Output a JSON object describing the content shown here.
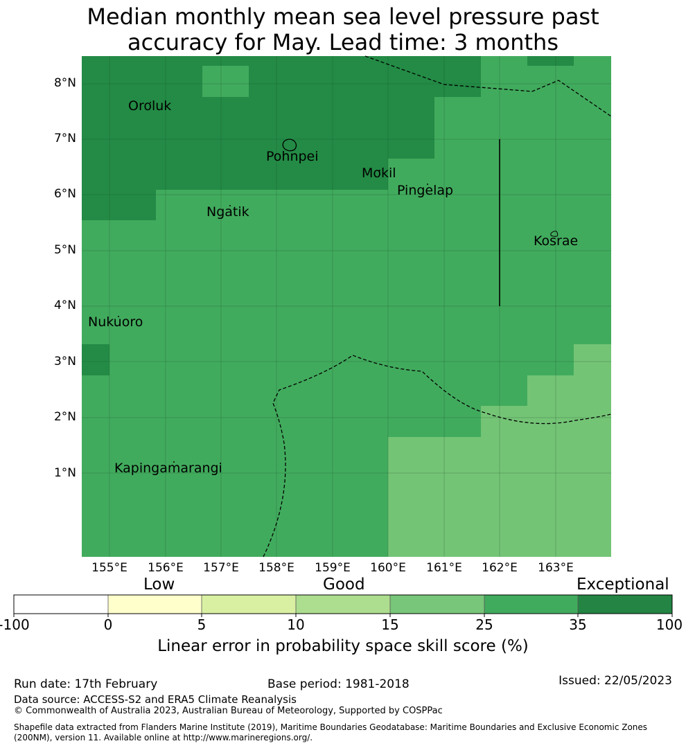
{
  "title_line1": "Median monthly mean sea level pressure past",
  "title_line2": "accuracy for May. Lead time: 3 months",
  "map": {
    "lat_labels": [
      "8°N",
      "7°N",
      "6°N",
      "5°N",
      "4°N",
      "3°N",
      "2°N",
      "1°N"
    ],
    "lon_labels": [
      "155°E",
      "156°E",
      "157°E",
      "158°E",
      "159°E",
      "160°E",
      "161°E",
      "162°E",
      "163°E"
    ],
    "places": {
      "oroluk": "Oroluk",
      "pohnpei": "Pohnpei",
      "mokil": "Mokil",
      "pingelap": "Pingelap",
      "ngatik": "Ngatik",
      "kosrae": "Kosrae",
      "nukuoro": "Nukuoro",
      "kapingamarangi": "Kapingamarangi"
    },
    "colors": {
      "exceptional_35_100": "#238b45",
      "good_25_35": "#41ab5d",
      "good_15_25": "#74c476"
    }
  },
  "colorbar": {
    "category_labels": {
      "low": "Low",
      "good": "Good",
      "exceptional": "Exceptional"
    },
    "ticks": [
      "-100",
      "0",
      "5",
      "10",
      "15",
      "25",
      "35",
      "100"
    ],
    "colors": [
      "#ffffff",
      "#ffffcc",
      "#d9f0a3",
      "#addd8e",
      "#78c679",
      "#41ab5d",
      "#238443"
    ],
    "label": "Linear error in probability space skill score (%)"
  },
  "footer": {
    "run_date": "Run date: 17th February",
    "base_period": "Base period: 1981-2018",
    "issued": "Issued: 22/05/2023",
    "data_source": "Data source: ACCESS-S2 and ERA5 Climate Reanalysis",
    "copyright": "© Commonwealth of Australia 2023, Australian Bureau of Meteorology, Supported by COSPPac",
    "shapefile_line1": "Shapefile data extracted from Flanders Marine Institute (2019), Maritime Boundaries Geodatabase: Maritime Boundaries and Exclusive Economic Zones",
    "shapefile_line2": "(200NM), version 11. Available online at http://www.marineregions.org/."
  }
}
